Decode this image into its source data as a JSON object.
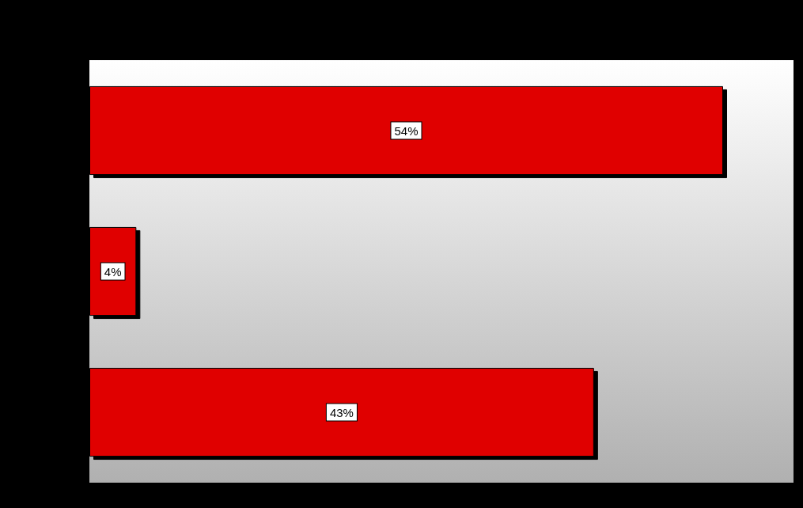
{
  "chart_data": {
    "type": "bar",
    "orientation": "horizontal",
    "categories": [
      null,
      null,
      null
    ],
    "values": [
      54,
      4,
      43
    ],
    "color": "#e00000",
    "xlim": [
      0,
      60
    ],
    "value_labels": [
      "54%",
      "4%",
      "43%"
    ],
    "tick_labels": false
  }
}
